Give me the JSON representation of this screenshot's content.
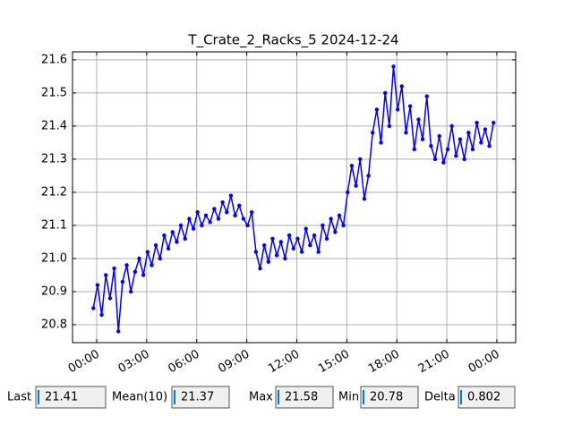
{
  "chart_data": {
    "type": "line",
    "title": "T_Crate_2_Racks_5 2024-12-24",
    "x": [
      -0.2,
      0.05,
      0.3,
      0.55,
      0.8,
      1.05,
      1.3,
      1.55,
      1.8,
      2.05,
      2.3,
      2.55,
      2.8,
      3.05,
      3.3,
      3.55,
      3.8,
      4.05,
      4.3,
      4.55,
      4.8,
      5.05,
      5.3,
      5.55,
      5.8,
      6.05,
      6.3,
      6.55,
      6.8,
      7.05,
      7.3,
      7.55,
      7.8,
      8.05,
      8.3,
      8.55,
      8.8,
      9.05,
      9.3,
      9.55,
      9.8,
      10.05,
      10.3,
      10.55,
      10.8,
      11.05,
      11.3,
      11.55,
      11.8,
      12.05,
      12.3,
      12.55,
      12.8,
      13.05,
      13.3,
      13.55,
      13.8,
      14.05,
      14.3,
      14.55,
      14.8,
      15.05,
      15.3,
      15.55,
      15.8,
      16.05,
      16.3,
      16.55,
      16.8,
      17.05,
      17.3,
      17.55,
      17.8,
      18.05,
      18.3,
      18.55,
      18.8,
      19.05,
      19.3,
      19.55,
      19.8,
      20.05,
      20.3,
      20.55,
      20.8,
      21.05,
      21.3,
      21.55,
      21.8,
      22.05,
      22.3,
      22.55,
      22.8,
      23.05,
      23.3,
      23.55,
      23.8
    ],
    "series": [
      {
        "color": "#0000ff",
        "values": [
          20.85,
          20.92,
          20.83,
          20.95,
          20.88,
          20.97,
          20.78,
          20.93,
          20.98,
          20.9,
          20.96,
          21.0,
          20.95,
          21.02,
          20.98,
          21.04,
          21.0,
          21.07,
          21.03,
          21.08,
          21.05,
          21.1,
          21.06,
          21.12,
          21.09,
          21.14,
          21.1,
          21.13,
          21.11,
          21.15,
          21.12,
          21.17,
          21.14,
          21.19,
          21.13,
          21.16,
          21.12,
          21.1,
          21.14,
          21.02,
          20.97,
          21.04,
          20.99,
          21.06,
          21.01,
          21.05,
          21.0,
          21.07,
          21.03,
          21.06,
          21.02,
          21.09,
          21.04,
          21.07,
          21.02,
          21.1,
          21.06,
          21.12,
          21.08,
          21.13,
          21.1,
          21.2,
          21.28,
          21.22,
          21.3,
          21.18,
          21.25,
          21.38,
          21.45,
          21.35,
          21.5,
          21.4,
          21.58,
          21.45,
          21.52,
          21.38,
          21.46,
          21.33,
          21.42,
          21.36,
          21.49,
          21.34,
          21.3,
          21.37,
          21.29,
          21.33,
          21.4,
          21.31,
          21.36,
          21.3,
          21.38,
          21.33,
          21.41,
          21.35,
          21.39,
          21.34,
          21.41
        ]
      }
    ],
    "xlim": [
      -1.45,
      25.13
    ],
    "xticks": [
      {
        "value": 0,
        "label": "00:00"
      },
      {
        "value": 3,
        "label": "03:00"
      },
      {
        "value": 6,
        "label": "06:00"
      },
      {
        "value": 9,
        "label": "09:00"
      },
      {
        "value": 12,
        "label": "12:00"
      },
      {
        "value": 15,
        "label": "15:00"
      },
      {
        "value": 18,
        "label": "18:00"
      },
      {
        "value": 21,
        "label": "21:00"
      },
      {
        "value": 24,
        "label": "00:00"
      }
    ],
    "ylim": [
      20.746,
      21.624
    ],
    "yticks": [
      20.8,
      20.9,
      {
        "value": 21,
        "label": "21.0"
      },
      21.1,
      21.2,
      21.3,
      21.4,
      21.5,
      21.6
    ],
    "grid": true
  },
  "stats": [
    {
      "label": "Last",
      "value": 21.41
    },
    {
      "label": "Mean(10)",
      "value": 21.37
    },
    {
      "label": "Max",
      "value": 21.58
    },
    {
      "label": "Min",
      "value": 20.78
    },
    {
      "label": "Delta",
      "value": 0.802
    }
  ]
}
